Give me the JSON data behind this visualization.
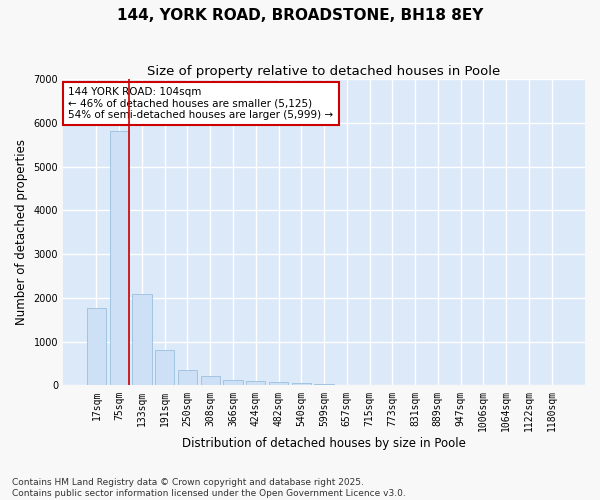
{
  "title": "144, YORK ROAD, BROADSTONE, BH18 8EY",
  "subtitle": "Size of property relative to detached houses in Poole",
  "xlabel": "Distribution of detached houses by size in Poole",
  "ylabel": "Number of detached properties",
  "bar_color": "#cde0f5",
  "bar_edge_color": "#9bbfdf",
  "background_color": "#dce9f8",
  "grid_color": "#ffffff",
  "annotation_box_color": "#cc0000",
  "annotation_text": "144 YORK ROAD: 104sqm\n← 46% of detached houses are smaller (5,125)\n54% of semi-detached houses are larger (5,999) →",
  "vline_color": "#cc0000",
  "vline_x": 1.43,
  "categories": [
    "17sqm",
    "75sqm",
    "133sqm",
    "191sqm",
    "250sqm",
    "308sqm",
    "366sqm",
    "424sqm",
    "482sqm",
    "540sqm",
    "599sqm",
    "657sqm",
    "715sqm",
    "773sqm",
    "831sqm",
    "889sqm",
    "947sqm",
    "1006sqm",
    "1064sqm",
    "1122sqm",
    "1180sqm"
  ],
  "values": [
    1780,
    5820,
    2080,
    820,
    360,
    210,
    120,
    100,
    80,
    50,
    25,
    10,
    5,
    3,
    2,
    2,
    1,
    1,
    1,
    1,
    1
  ],
  "ylim": [
    0,
    7000
  ],
  "yticks": [
    0,
    1000,
    2000,
    3000,
    4000,
    5000,
    6000,
    7000
  ],
  "footnote": "Contains HM Land Registry data © Crown copyright and database right 2025.\nContains public sector information licensed under the Open Government Licence v3.0.",
  "title_fontsize": 11,
  "subtitle_fontsize": 9.5,
  "label_fontsize": 8.5,
  "tick_fontsize": 7,
  "footnote_fontsize": 6.5,
  "annot_fontsize": 7.5
}
